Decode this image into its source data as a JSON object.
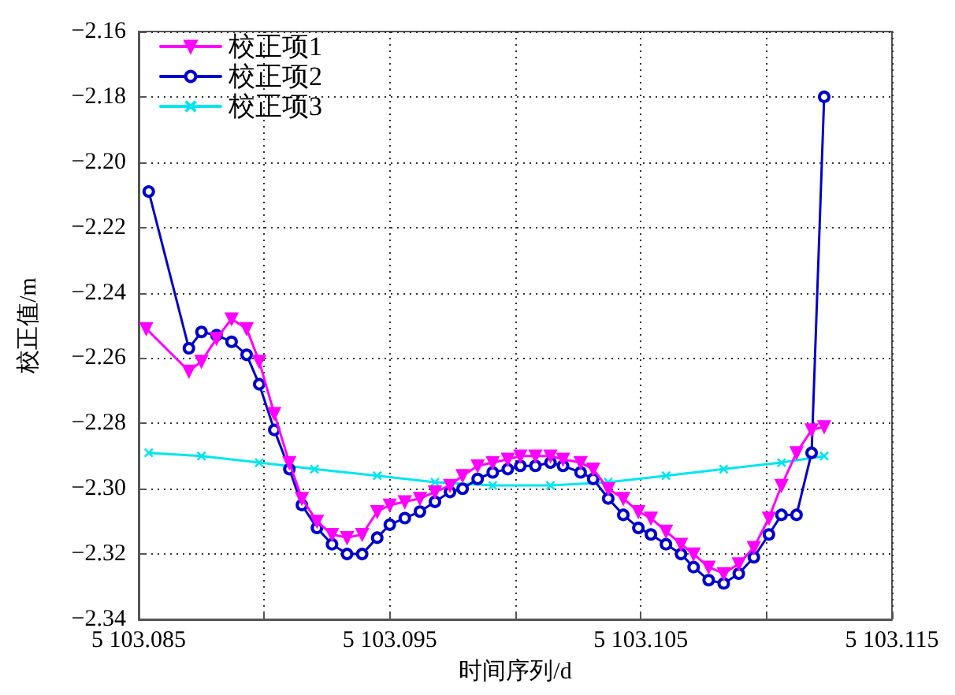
{
  "chart_data": {
    "type": "line",
    "xlabel": "时间序列/d",
    "ylabel": "校正值/m",
    "xlim": [
      5103.085,
      5103.115
    ],
    "xticks": [
      {
        "value": 5103.085,
        "label": "5 103.085"
      },
      {
        "value": 5103.09,
        "label": null
      },
      {
        "value": 5103.095,
        "label": "5 103.095"
      },
      {
        "value": 5103.1,
        "label": null
      },
      {
        "value": 5103.105,
        "label": "5 103.105"
      },
      {
        "value": 5103.11,
        "label": null
      },
      {
        "value": 5103.115,
        "label": "5 103.115"
      }
    ],
    "ylim": [
      -2.34,
      -2.16
    ],
    "yticks": [
      {
        "value": -2.34,
        "label": "−2.34"
      },
      {
        "value": -2.32,
        "label": "−2.32"
      },
      {
        "value": -2.3,
        "label": "−2.30"
      },
      {
        "value": -2.28,
        "label": "−2.28"
      },
      {
        "value": -2.26,
        "label": "−2.26"
      },
      {
        "value": -2.24,
        "label": "−2.24"
      },
      {
        "value": -2.22,
        "label": "−2.22"
      },
      {
        "value": -2.2,
        "label": "−2.20"
      },
      {
        "value": -2.18,
        "label": "−2.18"
      },
      {
        "value": -2.16,
        "label": "−2.16"
      }
    ],
    "grid": true,
    "legend": "top left",
    "line_style": "solid",
    "series": [
      {
        "name": "校正项1",
        "color": "#ff00ff",
        "marker": "triangle",
        "x": [
          5103.0853,
          5103.087,
          5103.0875,
          5103.0881,
          5103.0887,
          5103.0893,
          5103.0898,
          5103.0904,
          5103.091,
          5103.0915,
          5103.0921,
          5103.0927,
          5103.0933,
          5103.0939,
          5103.0945,
          5103.095,
          5103.0956,
          5103.0962,
          5103.0968,
          5103.0974,
          5103.0979,
          5103.0985,
          5103.0991,
          5103.0997,
          5103.1002,
          5103.1008,
          5103.1014,
          5103.1019,
          5103.1026,
          5103.1031,
          5103.1037,
          5103.1043,
          5103.1049,
          5103.1054,
          5103.106,
          5103.1066,
          5103.1071,
          5103.1077,
          5103.1083,
          5103.1089,
          5103.1095,
          5103.1101,
          5103.1106,
          5103.1112,
          5103.1118,
          5103.1123
        ],
        "values": [
          -2.251,
          -2.264,
          -2.261,
          -2.254,
          -2.248,
          -2.251,
          -2.261,
          -2.277,
          -2.292,
          -2.303,
          -2.31,
          -2.314,
          -2.315,
          -2.314,
          -2.307,
          -2.305,
          -2.304,
          -2.303,
          -2.301,
          -2.299,
          -2.296,
          -2.293,
          -2.292,
          -2.291,
          -2.29,
          -2.29,
          -2.29,
          -2.291,
          -2.292,
          -2.294,
          -2.3,
          -2.303,
          -2.307,
          -2.309,
          -2.313,
          -2.317,
          -2.32,
          -2.324,
          -2.326,
          -2.323,
          -2.318,
          -2.309,
          -2.299,
          -2.289,
          -2.282,
          -2.281
        ]
      },
      {
        "name": "校正项2",
        "color": "#0000cc",
        "marker": "circle",
        "x": [
          5103.0854,
          5103.087,
          5103.0875,
          5103.0881,
          5103.0887,
          5103.0893,
          5103.0898,
          5103.0904,
          5103.091,
          5103.0915,
          5103.0921,
          5103.0927,
          5103.0933,
          5103.0939,
          5103.0945,
          5103.095,
          5103.0956,
          5103.0962,
          5103.0968,
          5103.0974,
          5103.0979,
          5103.0985,
          5103.0991,
          5103.0997,
          5103.1002,
          5103.1008,
          5103.1014,
          5103.1019,
          5103.1026,
          5103.1031,
          5103.1037,
          5103.1043,
          5103.1049,
          5103.1054,
          5103.106,
          5103.1066,
          5103.1071,
          5103.1077,
          5103.1083,
          5103.1089,
          5103.1095,
          5103.1101,
          5103.1106,
          5103.1112,
          5103.1118,
          5103.1123
        ],
        "values": [
          -2.209,
          -2.257,
          -2.252,
          -2.253,
          -2.255,
          -2.259,
          -2.268,
          -2.282,
          -2.294,
          -2.305,
          -2.312,
          -2.317,
          -2.32,
          -2.32,
          -2.315,
          -2.311,
          -2.309,
          -2.307,
          -2.304,
          -2.301,
          -2.3,
          -2.297,
          -2.295,
          -2.294,
          -2.293,
          -2.293,
          -2.292,
          -2.293,
          -2.295,
          -2.297,
          -2.303,
          -2.308,
          -2.312,
          -2.314,
          -2.317,
          -2.32,
          -2.324,
          -2.328,
          -2.329,
          -2.326,
          -2.321,
          -2.314,
          -2.308,
          -2.308,
          -2.289,
          -2.18
        ]
      },
      {
        "name": "校正项3",
        "color": "#00e5ee",
        "marker": "cross",
        "x": [
          5103.0854,
          5103.0875,
          5103.0898,
          5103.092,
          5103.0945,
          5103.0968,
          5103.0991,
          5103.1014,
          5103.1037,
          5103.106,
          5103.1083,
          5103.1106,
          5103.1123
        ],
        "values": [
          -2.289,
          -2.29,
          -2.292,
          -2.294,
          -2.296,
          -2.298,
          -2.299,
          -2.299,
          -2.298,
          -2.296,
          -2.294,
          -2.292,
          -2.29
        ]
      }
    ]
  }
}
